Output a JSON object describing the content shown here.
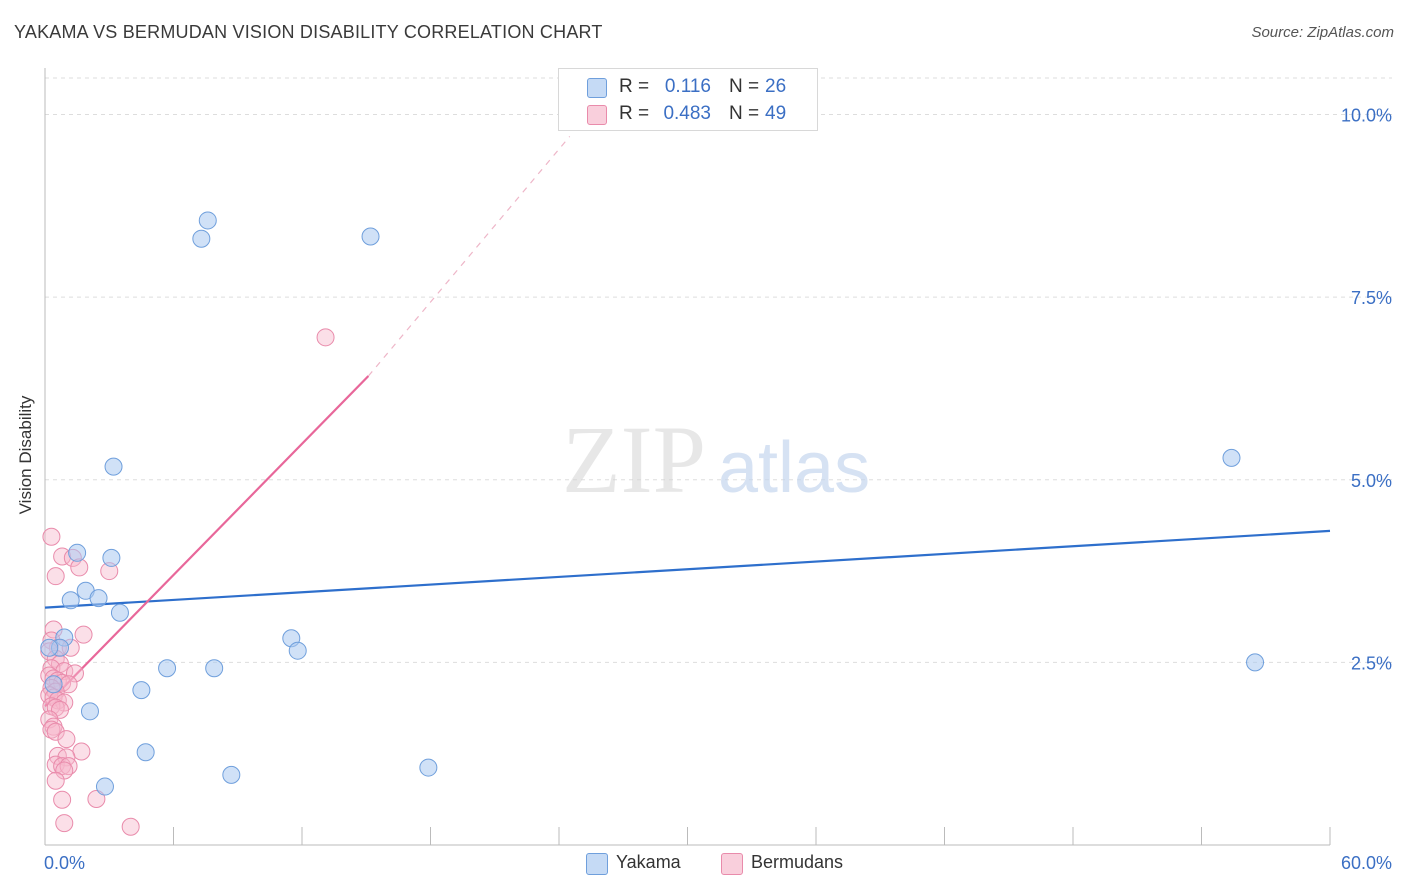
{
  "header": {
    "title": "YAKAMA VS BERMUDAN VISION DISABILITY CORRELATION CHART",
    "source": "Source: ZipAtlas.com"
  },
  "watermark": {
    "zip": "ZIP",
    "atlas": "atlas"
  },
  "legend": {
    "rows": [
      {
        "r_label": "R =",
        "r_value": "0.116",
        "n_label": "N =",
        "n_value": "26",
        "color": "#a9c8f0"
      },
      {
        "r_label": "R =",
        "r_value": "0.483",
        "n_label": "N =",
        "n_value": "49",
        "color": "#f5b3c8"
      }
    ]
  },
  "bottom_legend": {
    "series1": "Yakama",
    "series2": "Bermudans"
  },
  "colors": {
    "blue_fill": "#a9c8f0",
    "blue_stroke": "#6f9fdc",
    "blue_line": "#2e6fcc",
    "pink_fill": "#f7b9cc",
    "pink_stroke": "#e98bab",
    "pink_line": "#e8679a",
    "grid": "#dddddd",
    "axis_text": "#3b6fc4"
  },
  "chart_data": {
    "type": "scatter",
    "title": "YAKAMA VS BERMUDAN VISION DISABILITY CORRELATION CHART",
    "xlabel": "",
    "ylabel": "Vision Disability",
    "xlim": [
      0,
      60
    ],
    "ylim": [
      0,
      10.5
    ],
    "x_tick_labels": [
      "0.0%",
      "60.0%"
    ],
    "y_ticks": [
      2.5,
      5.0,
      7.5,
      10.0
    ],
    "y_tick_labels": [
      "2.5%",
      "5.0%",
      "7.5%",
      "10.0%"
    ],
    "grid": true,
    "legend_position": "top-center",
    "series": [
      {
        "name": "Yakama",
        "r": 0.116,
        "n": 26,
        "points": [
          [
            7.3,
            8.3
          ],
          [
            7.6,
            8.55
          ],
          [
            15.2,
            8.33
          ],
          [
            3.2,
            5.18
          ],
          [
            55.4,
            5.3
          ],
          [
            1.5,
            4.0
          ],
          [
            3.1,
            3.93
          ],
          [
            1.2,
            3.35
          ],
          [
            1.9,
            3.48
          ],
          [
            2.5,
            3.38
          ],
          [
            3.5,
            3.18
          ],
          [
            0.9,
            2.84
          ],
          [
            0.7,
            2.7
          ],
          [
            11.5,
            2.83
          ],
          [
            11.8,
            2.66
          ],
          [
            56.5,
            2.5
          ],
          [
            5.7,
            2.42
          ],
          [
            7.9,
            2.42
          ],
          [
            4.5,
            2.12
          ],
          [
            2.1,
            1.83
          ],
          [
            4.7,
            1.27
          ],
          [
            8.7,
            0.96
          ],
          [
            17.9,
            1.06
          ],
          [
            2.8,
            0.8
          ],
          [
            0.2,
            2.7
          ],
          [
            0.4,
            2.2
          ]
        ],
        "trendline": {
          "x": [
            0,
            60
          ],
          "y": [
            3.25,
            4.3
          ]
        }
      },
      {
        "name": "Bermudans",
        "r": 0.483,
        "n": 49,
        "points": [
          [
            13.1,
            6.95
          ],
          [
            0.3,
            4.22
          ],
          [
            0.8,
            3.95
          ],
          [
            1.3,
            3.93
          ],
          [
            1.6,
            3.8
          ],
          [
            3.0,
            3.75
          ],
          [
            0.5,
            3.68
          ],
          [
            0.4,
            2.95
          ],
          [
            1.8,
            2.88
          ],
          [
            0.3,
            2.8
          ],
          [
            0.6,
            2.7
          ],
          [
            1.2,
            2.7
          ],
          [
            0.2,
            2.65
          ],
          [
            0.5,
            2.55
          ],
          [
            0.7,
            2.48
          ],
          [
            0.3,
            2.42
          ],
          [
            0.9,
            2.38
          ],
          [
            1.4,
            2.35
          ],
          [
            0.2,
            2.32
          ],
          [
            0.4,
            2.28
          ],
          [
            0.6,
            2.25
          ],
          [
            0.8,
            2.22
          ],
          [
            1.1,
            2.2
          ],
          [
            0.3,
            2.15
          ],
          [
            0.5,
            2.1
          ],
          [
            0.2,
            2.05
          ],
          [
            0.4,
            2.02
          ],
          [
            0.6,
            1.98
          ],
          [
            0.9,
            1.95
          ],
          [
            0.3,
            1.9
          ],
          [
            0.5,
            1.88
          ],
          [
            0.7,
            1.85
          ],
          [
            0.2,
            1.72
          ],
          [
            0.4,
            1.62
          ],
          [
            0.3,
            1.58
          ],
          [
            0.5,
            1.55
          ],
          [
            1.0,
            1.45
          ],
          [
            1.7,
            1.28
          ],
          [
            0.6,
            1.22
          ],
          [
            1.0,
            1.2
          ],
          [
            0.5,
            1.1
          ],
          [
            0.8,
            1.08
          ],
          [
            1.1,
            1.08
          ],
          [
            0.9,
            1.02
          ],
          [
            0.5,
            0.88
          ],
          [
            0.8,
            0.62
          ],
          [
            2.4,
            0.63
          ],
          [
            0.9,
            0.3
          ],
          [
            4.0,
            0.25
          ]
        ],
        "trendline": {
          "x": [
            0,
            15.1
          ],
          "y": [
            1.9,
            6.42
          ],
          "dashed_to": {
            "x": 24.5,
            "y": 9.7
          }
        }
      }
    ]
  }
}
